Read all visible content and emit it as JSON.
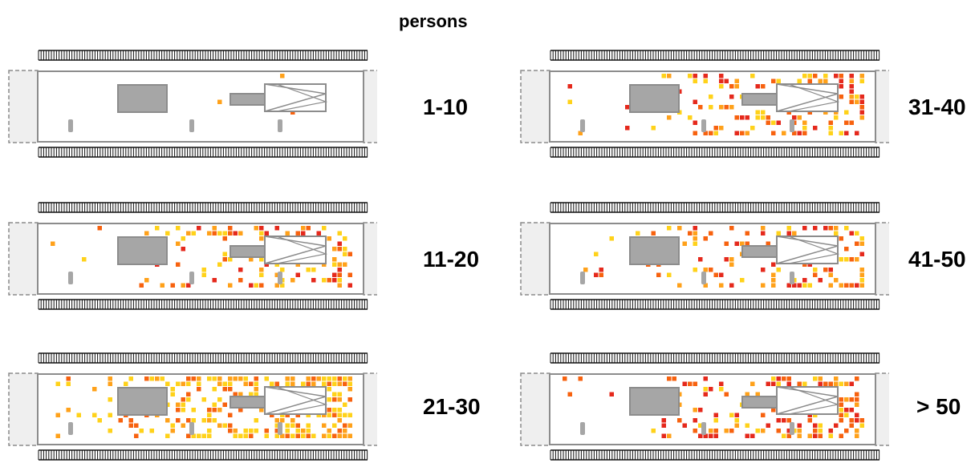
{
  "title": "persons",
  "colors": {
    "low": "#ffd21a",
    "mid": "#ffa11a",
    "high": "#f7620f",
    "top": "#e5291c",
    "platform": "#ffffff",
    "outline": "#8c8c8c",
    "kiosk": "#a6a6a6",
    "endzone": "#efefef"
  },
  "panels": [
    {
      "label": "1-10",
      "density": 0.1,
      "palette": [
        "high",
        "top",
        "mid"
      ]
    },
    {
      "label": "11-20",
      "density": 0.4,
      "palette": [
        "mid",
        "high",
        "top",
        "low"
      ]
    },
    {
      "label": "21-30",
      "density": 0.65,
      "palette": [
        "low",
        "mid",
        "low",
        "high"
      ]
    },
    {
      "label": "31-40",
      "density": 0.45,
      "palette": [
        "mid",
        "low",
        "high",
        "top"
      ]
    },
    {
      "label": "41-50",
      "density": 0.4,
      "palette": [
        "mid",
        "high",
        "low",
        "top"
      ]
    },
    {
      "label": "> 50",
      "density": 0.45,
      "palette": [
        "mid",
        "high",
        "top",
        "low"
      ]
    }
  ]
}
